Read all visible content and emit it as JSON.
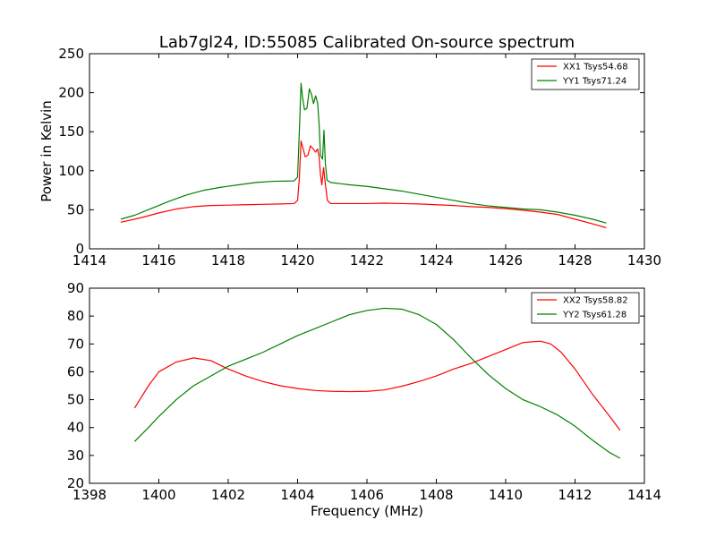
{
  "chart_data": [
    {
      "type": "line",
      "title": "Lab7gl24, ID:55085 Calibrated On-source spectrum",
      "xlabel": "",
      "ylabel": "Power in Kelvin",
      "xlim": [
        1414,
        1430
      ],
      "ylim": [
        0,
        250
      ],
      "xticks": [
        1414,
        1416,
        1418,
        1420,
        1422,
        1424,
        1426,
        1428,
        1430
      ],
      "yticks": [
        0,
        50,
        100,
        150,
        200,
        250
      ],
      "grid": false,
      "legend_position": "top-right",
      "series": [
        {
          "name": "XX1 Tsys54.68",
          "color": "#ff0000",
          "points": [
            [
              1414.9,
              34
            ],
            [
              1415.5,
              40
            ],
            [
              1416,
              46
            ],
            [
              1416.5,
              51
            ],
            [
              1417,
              54
            ],
            [
              1417.5,
              55.5
            ],
            [
              1418,
              56
            ],
            [
              1418.5,
              56.5
            ],
            [
              1419,
              57
            ],
            [
              1419.5,
              57.5
            ],
            [
              1419.9,
              58
            ],
            [
              1420.0,
              62
            ],
            [
              1420.05,
              90
            ],
            [
              1420.1,
              138
            ],
            [
              1420.15,
              130
            ],
            [
              1420.22,
              118
            ],
            [
              1420.3,
              120
            ],
            [
              1420.37,
              132
            ],
            [
              1420.45,
              128
            ],
            [
              1420.52,
              124
            ],
            [
              1420.58,
              128
            ],
            [
              1420.62,
              118
            ],
            [
              1420.66,
              95
            ],
            [
              1420.7,
              82
            ],
            [
              1420.75,
              104
            ],
            [
              1420.8,
              83
            ],
            [
              1420.86,
              62
            ],
            [
              1420.95,
              58
            ],
            [
              1421.5,
              58
            ],
            [
              1422,
              58
            ],
            [
              1422.5,
              58.5
            ],
            [
              1423,
              58
            ],
            [
              1423.5,
              57.5
            ],
            [
              1424,
              56.5
            ],
            [
              1424.5,
              55.5
            ],
            [
              1425,
              54
            ],
            [
              1425.5,
              53
            ],
            [
              1426,
              51.5
            ],
            [
              1426.5,
              49.5
            ],
            [
              1427,
              47
            ],
            [
              1427.5,
              44
            ],
            [
              1428,
              38
            ],
            [
              1428.5,
              32
            ],
            [
              1428.9,
              27
            ]
          ]
        },
        {
          "name": "YY1 Tsys71.24",
          "color": "#008000",
          "points": [
            [
              1414.9,
              38
            ],
            [
              1415.3,
              43
            ],
            [
              1415.8,
              52
            ],
            [
              1416.3,
              61
            ],
            [
              1416.8,
              69
            ],
            [
              1417.3,
              75
            ],
            [
              1417.8,
              79
            ],
            [
              1418.3,
              82
            ],
            [
              1418.8,
              85
            ],
            [
              1419.3,
              86.5
            ],
            [
              1419.9,
              87
            ],
            [
              1420.0,
              92
            ],
            [
              1420.05,
              150
            ],
            [
              1420.1,
              212
            ],
            [
              1420.14,
              195
            ],
            [
              1420.2,
              178
            ],
            [
              1420.27,
              180
            ],
            [
              1420.34,
              205
            ],
            [
              1420.4,
              198
            ],
            [
              1420.46,
              186
            ],
            [
              1420.52,
              196
            ],
            [
              1420.58,
              186
            ],
            [
              1420.62,
              160
            ],
            [
              1420.66,
              120
            ],
            [
              1420.72,
              115
            ],
            [
              1420.76,
              152
            ],
            [
              1420.8,
              110
            ],
            [
              1420.85,
              88
            ],
            [
              1420.95,
              85
            ],
            [
              1421.5,
              82
            ],
            [
              1422,
              80
            ],
            [
              1422.5,
              77
            ],
            [
              1423,
              74
            ],
            [
              1423.5,
              70
            ],
            [
              1424,
              66
            ],
            [
              1424.5,
              62
            ],
            [
              1425,
              58
            ],
            [
              1425.5,
              55
            ],
            [
              1426,
              53
            ],
            [
              1426.5,
              51
            ],
            [
              1427,
              50
            ],
            [
              1427.5,
              47
            ],
            [
              1428,
              43
            ],
            [
              1428.5,
              38
            ],
            [
              1428.9,
              33
            ]
          ]
        }
      ]
    },
    {
      "type": "line",
      "title": "",
      "xlabel": "Frequency (MHz)",
      "ylabel": "",
      "xlim": [
        1398,
        1414
      ],
      "ylim": [
        20,
        90
      ],
      "xticks": [
        1398,
        1400,
        1402,
        1404,
        1406,
        1408,
        1410,
        1412,
        1414
      ],
      "yticks": [
        20,
        30,
        40,
        50,
        60,
        70,
        80,
        90
      ],
      "grid": false,
      "legend_position": "top-right",
      "series": [
        {
          "name": "XX2 Tsys58.82",
          "color": "#ff0000",
          "points": [
            [
              1399.3,
              47
            ],
            [
              1399.7,
              55
            ],
            [
              1400.0,
              60
            ],
            [
              1400.5,
              63.5
            ],
            [
              1401.0,
              65
            ],
            [
              1401.5,
              64
            ],
            [
              1402.0,
              61
            ],
            [
              1402.5,
              58.5
            ],
            [
              1403.0,
              56.5
            ],
            [
              1403.5,
              55
            ],
            [
              1404.0,
              54
            ],
            [
              1404.5,
              53.3
            ],
            [
              1405.0,
              53
            ],
            [
              1405.5,
              52.9
            ],
            [
              1406.0,
              53
            ],
            [
              1406.5,
              53.5
            ],
            [
              1407.0,
              54.8
            ],
            [
              1407.5,
              56.5
            ],
            [
              1408.0,
              58.5
            ],
            [
              1408.5,
              61
            ],
            [
              1409.0,
              63
            ],
            [
              1409.5,
              65.5
            ],
            [
              1410.0,
              68
            ],
            [
              1410.5,
              70.5
            ],
            [
              1411.0,
              71
            ],
            [
              1411.3,
              70
            ],
            [
              1411.6,
              67
            ],
            [
              1412.0,
              61
            ],
            [
              1412.5,
              52
            ],
            [
              1413.0,
              44
            ],
            [
              1413.3,
              39
            ]
          ]
        },
        {
          "name": "YY2 Tsys61.28",
          "color": "#008000",
          "points": [
            [
              1399.3,
              35
            ],
            [
              1399.7,
              40
            ],
            [
              1400.0,
              44
            ],
            [
              1400.5,
              50
            ],
            [
              1401.0,
              55
            ],
            [
              1401.5,
              58.5
            ],
            [
              1402.0,
              62
            ],
            [
              1402.5,
              64.5
            ],
            [
              1403.0,
              67
            ],
            [
              1403.5,
              70
            ],
            [
              1404.0,
              73
            ],
            [
              1404.5,
              75.5
            ],
            [
              1405.0,
              78
            ],
            [
              1405.5,
              80.5
            ],
            [
              1406.0,
              82
            ],
            [
              1406.5,
              82.8
            ],
            [
              1407.0,
              82.5
            ],
            [
              1407.5,
              80.5
            ],
            [
              1408.0,
              77
            ],
            [
              1408.5,
              71.5
            ],
            [
              1409.0,
              65
            ],
            [
              1409.5,
              59
            ],
            [
              1410.0,
              54
            ],
            [
              1410.5,
              50
            ],
            [
              1411.0,
              47.5
            ],
            [
              1411.5,
              44.5
            ],
            [
              1412.0,
              40.5
            ],
            [
              1412.5,
              35.5
            ],
            [
              1413.0,
              31
            ],
            [
              1413.3,
              29
            ]
          ]
        }
      ]
    }
  ]
}
